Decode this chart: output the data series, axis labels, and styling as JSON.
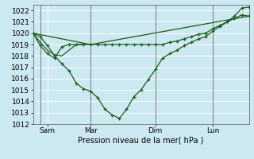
{
  "bg_color": "#cce8f0",
  "grid_color": "#ffffff",
  "line_color": "#1a5c1a",
  "xlabel": "Pression niveau de la mer( hPa )",
  "ylim": [
    1012,
    1022.5
  ],
  "yticks": [
    1012,
    1013,
    1014,
    1015,
    1016,
    1017,
    1018,
    1019,
    1020,
    1021,
    1022
  ],
  "x_tick_labels": [
    "Sam",
    "Mar",
    "Dim",
    "Lun"
  ],
  "x_tick_positions": [
    2,
    8,
    17,
    25
  ],
  "x_vline_positions": [
    1,
    8,
    17,
    25
  ],
  "xlim": [
    0,
    30
  ],
  "line1_x": [
    0,
    1,
    2,
    3,
    4,
    5,
    6,
    7,
    8,
    9,
    10,
    11,
    12,
    13,
    14,
    15,
    16,
    17,
    18,
    19,
    20,
    21,
    22,
    23,
    24,
    25,
    26,
    27,
    28,
    29,
    30
  ],
  "line1_y": [
    1020.0,
    1019.7,
    1018.9,
    1018.0,
    1017.3,
    1016.7,
    1015.6,
    1015.1,
    1014.9,
    1014.3,
    1013.3,
    1012.8,
    1012.5,
    1013.3,
    1014.4,
    1015.0,
    1015.9,
    1016.8,
    1017.8,
    1018.2,
    1018.5,
    1018.9,
    1019.2,
    1019.5,
    1019.7,
    1020.2,
    1020.6,
    1021.0,
    1021.5,
    1022.2,
    1022.3
  ],
  "line1_has_markers": true,
  "line2_x": [
    0,
    1,
    2,
    3,
    4,
    5,
    6,
    7,
    8,
    9,
    10,
    11,
    12,
    13,
    14,
    15,
    16,
    17,
    18,
    19,
    20,
    21,
    22,
    23,
    24,
    25,
    26,
    27,
    28,
    29,
    30
  ],
  "line2_y": [
    1020.0,
    1018.9,
    1018.2,
    1017.8,
    1018.8,
    1019.0,
    1019.0,
    1019.0,
    1019.0,
    1019.0,
    1019.0,
    1019.0,
    1019.0,
    1019.0,
    1019.0,
    1019.0,
    1019.0,
    1019.0,
    1019.0,
    1019.2,
    1019.3,
    1019.5,
    1019.7,
    1019.9,
    1020.0,
    1020.4,
    1020.7,
    1021.0,
    1021.3,
    1021.6,
    1021.5
  ],
  "line2_has_markers": true,
  "line3_x": [
    0,
    8,
    30
  ],
  "line3_y": [
    1020.0,
    1019.0,
    1021.5
  ],
  "line3_has_markers": false,
  "line4_x": [
    0,
    1,
    2,
    3,
    4,
    5,
    6,
    7
  ],
  "line4_y": [
    1020.0,
    1019.2,
    1018.5,
    1018.1,
    1018.0,
    1018.5,
    1019.0,
    1019.0
  ],
  "line4_has_markers": false
}
